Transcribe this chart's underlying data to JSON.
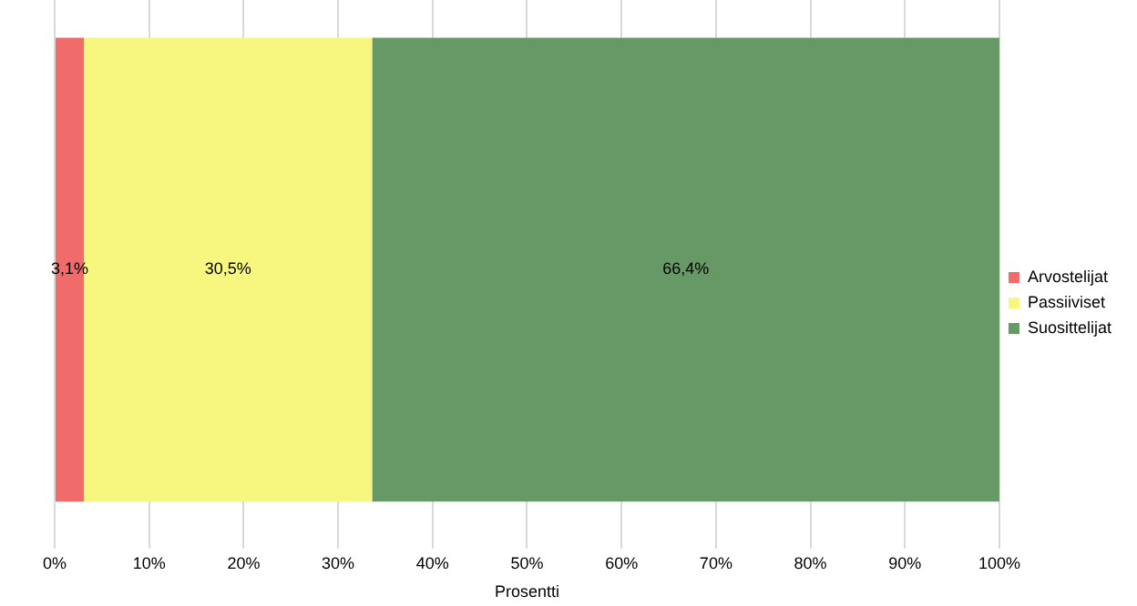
{
  "chart_data": {
    "type": "bar",
    "orientation": "horizontal",
    "stacked": true,
    "xlabel": "Prosentti",
    "categories": [
      null
    ],
    "series": [
      {
        "name": "Arvostelijat",
        "color": "#f26b6b",
        "values": [
          3.1
        ],
        "value_labels": [
          "3,1%"
        ]
      },
      {
        "name": "Passiiviset",
        "color": "#f7f77f",
        "values": [
          30.5
        ],
        "value_labels": [
          "30,5%"
        ]
      },
      {
        "name": "Suosittelijat",
        "color": "#669966",
        "values": [
          66.4
        ],
        "value_labels": [
          "66,4%"
        ]
      }
    ],
    "xlim": [
      0,
      100
    ],
    "xticks": [
      {
        "value": 0,
        "label": "0%"
      },
      {
        "value": 10,
        "label": "10%"
      },
      {
        "value": 20,
        "label": "20%"
      },
      {
        "value": 30,
        "label": "30%"
      },
      {
        "value": 40,
        "label": "40%"
      },
      {
        "value": 50,
        "label": "50%"
      },
      {
        "value": 60,
        "label": "60%"
      },
      {
        "value": 70,
        "label": "70%"
      },
      {
        "value": 80,
        "label": "80%"
      },
      {
        "value": 90,
        "label": "90%"
      },
      {
        "value": 100,
        "label": "100%"
      }
    ],
    "grid": "x",
    "legend": "right"
  }
}
